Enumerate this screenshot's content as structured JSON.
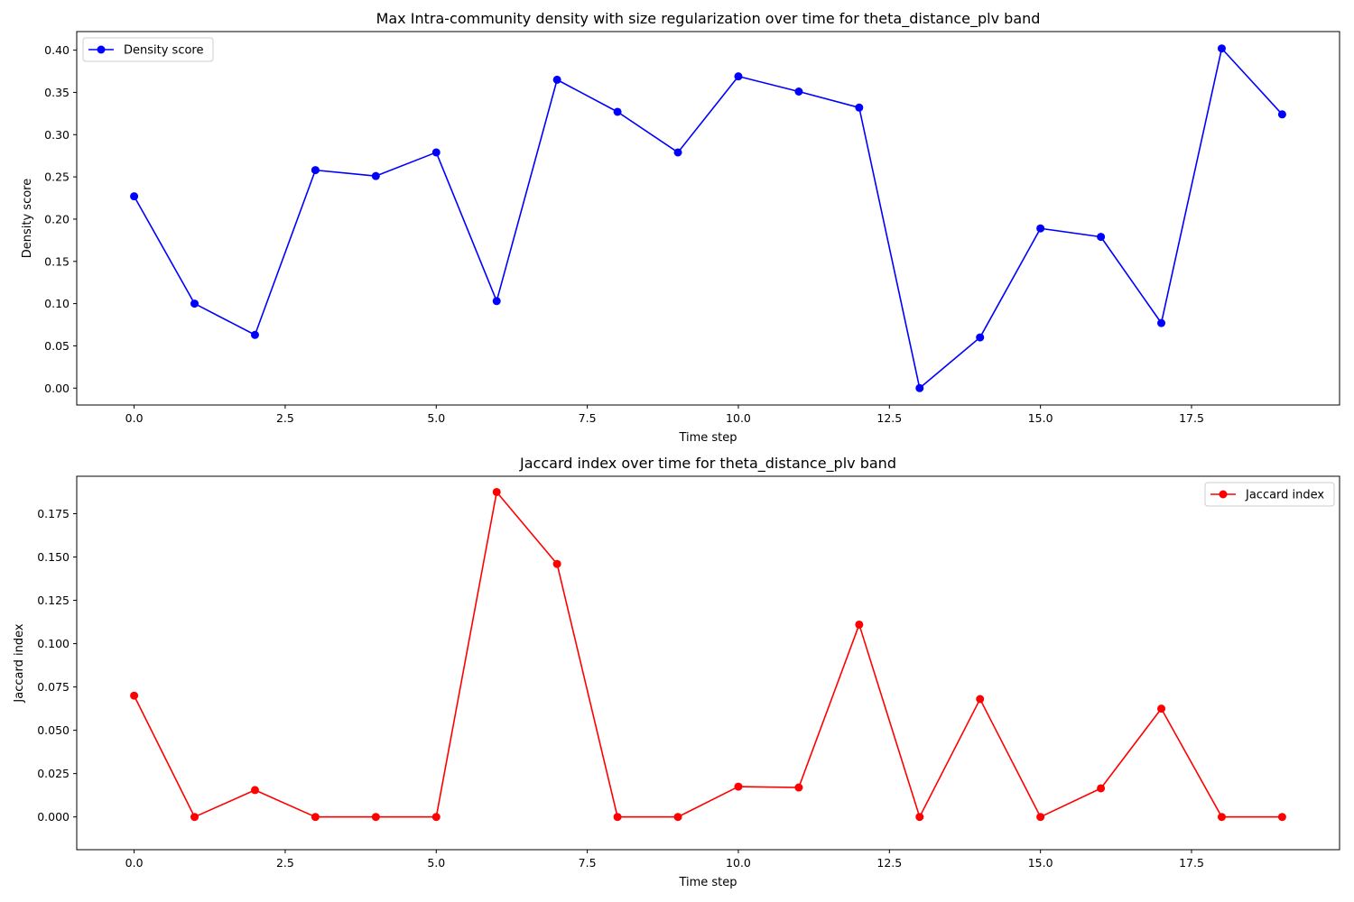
{
  "chart_data": [
    {
      "type": "line",
      "title": "Max Intra-community density with size regularization over time for theta_distance_plv band",
      "xlabel": "Time step",
      "ylabel": "Density score",
      "xlim": [
        -0.95,
        19.95
      ],
      "ylim": [
        -0.02,
        0.422
      ],
      "xticks": [
        0.0,
        2.5,
        5.0,
        7.5,
        10.0,
        12.5,
        15.0,
        17.5
      ],
      "xtick_labels": [
        "0.0",
        "2.5",
        "5.0",
        "7.5",
        "10.0",
        "12.5",
        "15.0",
        "17.5"
      ],
      "yticks": [
        0.0,
        0.05,
        0.1,
        0.15,
        0.2,
        0.25,
        0.3,
        0.35,
        0.4
      ],
      "ytick_labels": [
        "0.00",
        "0.05",
        "0.10",
        "0.15",
        "0.20",
        "0.25",
        "0.30",
        "0.35",
        "0.40"
      ],
      "grid": false,
      "legend_position": "upper left",
      "x": [
        0,
        1,
        2,
        3,
        4,
        5,
        6,
        7,
        8,
        9,
        10,
        11,
        12,
        13,
        14,
        15,
        16,
        17,
        18,
        19
      ],
      "series": [
        {
          "name": "Density score",
          "color": "#0000ff",
          "marker": "circle",
          "values": [
            0.227,
            0.1,
            0.063,
            0.258,
            0.251,
            0.279,
            0.103,
            0.365,
            0.327,
            0.279,
            0.369,
            0.351,
            0.332,
            0.0,
            0.06,
            0.189,
            0.179,
            0.077,
            0.402,
            0.324
          ]
        }
      ]
    },
    {
      "type": "line",
      "title": "Jaccard index over time for theta_distance_plv band",
      "xlabel": "Time step",
      "ylabel": "Jaccard index",
      "xlim": [
        -0.95,
        19.95
      ],
      "ylim": [
        -0.0189,
        0.1966
      ],
      "xticks": [
        0.0,
        2.5,
        5.0,
        7.5,
        10.0,
        12.5,
        15.0,
        17.5
      ],
      "xtick_labels": [
        "0.0",
        "2.5",
        "5.0",
        "7.5",
        "10.0",
        "12.5",
        "15.0",
        "17.5"
      ],
      "yticks": [
        0.0,
        0.025,
        0.05,
        0.075,
        0.1,
        0.125,
        0.15,
        0.175
      ],
      "ytick_labels": [
        "0.000",
        "0.025",
        "0.050",
        "0.075",
        "0.100",
        "0.125",
        "0.150",
        "0.175"
      ],
      "grid": false,
      "legend_position": "upper right",
      "x": [
        0,
        1,
        2,
        3,
        4,
        5,
        6,
        7,
        8,
        9,
        10,
        11,
        12,
        13,
        14,
        15,
        16,
        17,
        18,
        19
      ],
      "series": [
        {
          "name": "Jaccard index",
          "color": "#ff0000",
          "marker": "circle",
          "values": [
            0.07,
            0.0,
            0.0155,
            0.0,
            0.0,
            0.0,
            0.1875,
            0.146,
            0.0,
            0.0,
            0.0175,
            0.017,
            0.111,
            0.0,
            0.068,
            0.0,
            0.0165,
            0.0625,
            0.0,
            0.0
          ]
        }
      ]
    }
  ]
}
